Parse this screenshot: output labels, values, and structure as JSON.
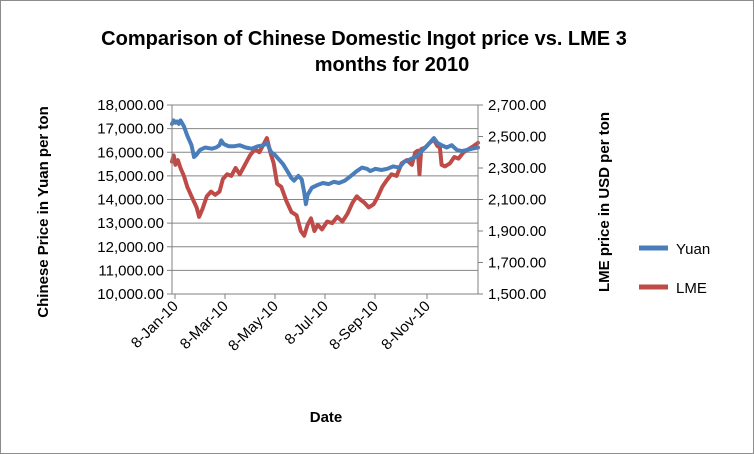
{
  "chart_data": {
    "type": "line",
    "title_line1": "Comparison of Chinese Domestic Ingot price vs. LME 3",
    "title_line2": "months for 2010",
    "xlabel": "Date",
    "ylabel_left": "Chinese Price in Yuan per ton",
    "ylabel_right": "LME price in USD per ton",
    "x_tick_labels": [
      "8-Jan-10",
      "8-Mar-10",
      "8-May-10",
      "8-Jul-10",
      "8-Sep-10",
      "8-Nov-10"
    ],
    "left_axis": {
      "ylim": [
        10000,
        18000
      ],
      "tick_labels": [
        "10,000.00",
        "11,000.00",
        "12,000.00",
        "13,000.00",
        "14,000.00",
        "15,000.00",
        "16,000.00",
        "17,000.00",
        "18,000.00"
      ]
    },
    "right_axis": {
      "ylim": [
        1500,
        2700
      ],
      "tick_labels": [
        "1,500.00",
        "1,700.00",
        "1,900.00",
        "2,100.00",
        "2,300.00",
        "2,500.00",
        "2,700.00"
      ]
    },
    "x_range": [
      "2010-01-04",
      "2010-12-31"
    ],
    "grid": true,
    "legend_position": "right",
    "series": [
      {
        "name": "Yuan",
        "axis": "left",
        "color": "#4a7ebb",
        "points": [
          [
            "2010-01-04",
            17200
          ],
          [
            "2010-01-06",
            17350
          ],
          [
            "2010-01-08",
            17250
          ],
          [
            "2010-01-10",
            17300
          ],
          [
            "2010-01-12",
            17200
          ],
          [
            "2010-01-14",
            17350
          ],
          [
            "2010-01-18",
            17100
          ],
          [
            "2010-01-22",
            16700
          ],
          [
            "2010-01-27",
            16300
          ],
          [
            "2010-01-30",
            15800
          ],
          [
            "2010-02-02",
            15900
          ],
          [
            "2010-02-06",
            16100
          ],
          [
            "2010-02-12",
            16200
          ],
          [
            "2010-02-20",
            16150
          ],
          [
            "2010-02-25",
            16200
          ],
          [
            "2010-03-01",
            16300
          ],
          [
            "2010-03-03",
            16500
          ],
          [
            "2010-03-06",
            16350
          ],
          [
            "2010-03-12",
            16250
          ],
          [
            "2010-03-18",
            16250
          ],
          [
            "2010-03-25",
            16300
          ],
          [
            "2010-04-01",
            16200
          ],
          [
            "2010-04-08",
            16150
          ],
          [
            "2010-04-15",
            16250
          ],
          [
            "2010-04-22",
            16300
          ],
          [
            "2010-04-26",
            16400
          ],
          [
            "2010-05-01",
            16000
          ],
          [
            "2010-05-05",
            15900
          ],
          [
            "2010-05-10",
            15700
          ],
          [
            "2010-05-15",
            15500
          ],
          [
            "2010-05-20",
            15200
          ],
          [
            "2010-05-25",
            14900
          ],
          [
            "2010-05-28",
            14800
          ],
          [
            "2010-06-02",
            15000
          ],
          [
            "2010-06-06",
            14850
          ],
          [
            "2010-06-09",
            14300
          ],
          [
            "2010-06-11",
            13800
          ],
          [
            "2010-06-13",
            14200
          ],
          [
            "2010-06-18",
            14500
          ],
          [
            "2010-06-24",
            14600
          ],
          [
            "2010-07-01",
            14700
          ],
          [
            "2010-07-08",
            14650
          ],
          [
            "2010-07-14",
            14750
          ],
          [
            "2010-07-20",
            14700
          ],
          [
            "2010-07-27",
            14800
          ],
          [
            "2010-08-03",
            15000
          ],
          [
            "2010-08-10",
            15200
          ],
          [
            "2010-08-16",
            15350
          ],
          [
            "2010-08-22",
            15300
          ],
          [
            "2010-08-26",
            15200
          ],
          [
            "2010-09-01",
            15300
          ],
          [
            "2010-09-08",
            15250
          ],
          [
            "2010-09-15",
            15300
          ],
          [
            "2010-09-22",
            15400
          ],
          [
            "2010-09-29",
            15350
          ],
          [
            "2010-10-05",
            15600
          ],
          [
            "2010-10-12",
            15700
          ],
          [
            "2010-10-18",
            15800
          ],
          [
            "2010-10-24",
            16000
          ],
          [
            "2010-10-30",
            16200
          ],
          [
            "2010-11-04",
            16400
          ],
          [
            "2010-11-09",
            16600
          ],
          [
            "2010-11-13",
            16400
          ],
          [
            "2010-11-18",
            16300
          ],
          [
            "2010-11-24",
            16200
          ],
          [
            "2010-11-30",
            16300
          ],
          [
            "2010-12-06",
            16100
          ],
          [
            "2010-12-12",
            16050
          ],
          [
            "2010-12-18",
            16100
          ],
          [
            "2010-12-24",
            16150
          ],
          [
            "2010-12-31",
            16200
          ]
        ]
      },
      {
        "name": "LME",
        "axis": "right",
        "color": "#be4b48",
        "points": [
          [
            "2010-01-04",
            2340
          ],
          [
            "2010-01-06",
            2380
          ],
          [
            "2010-01-08",
            2320
          ],
          [
            "2010-01-11",
            2350
          ],
          [
            "2010-01-14",
            2300
          ],
          [
            "2010-01-18",
            2250
          ],
          [
            "2010-01-22",
            2180
          ],
          [
            "2010-01-27",
            2120
          ],
          [
            "2010-02-02",
            2050
          ],
          [
            "2010-02-05",
            1990
          ],
          [
            "2010-02-09",
            2040
          ],
          [
            "2010-02-14",
            2120
          ],
          [
            "2010-02-19",
            2150
          ],
          [
            "2010-02-24",
            2130
          ],
          [
            "2010-03-01",
            2150
          ],
          [
            "2010-03-05",
            2230
          ],
          [
            "2010-03-10",
            2260
          ],
          [
            "2010-03-15",
            2250
          ],
          [
            "2010-03-20",
            2300
          ],
          [
            "2010-03-25",
            2260
          ],
          [
            "2010-03-31",
            2320
          ],
          [
            "2010-04-06",
            2380
          ],
          [
            "2010-04-12",
            2420
          ],
          [
            "2010-04-17",
            2400
          ],
          [
            "2010-04-22",
            2450
          ],
          [
            "2010-04-26",
            2490
          ],
          [
            "2010-04-30",
            2400
          ],
          [
            "2010-05-04",
            2330
          ],
          [
            "2010-05-08",
            2200
          ],
          [
            "2010-05-13",
            2180
          ],
          [
            "2010-05-19",
            2090
          ],
          [
            "2010-05-25",
            2020
          ],
          [
            "2010-05-31",
            2000
          ],
          [
            "2010-06-05",
            1900
          ],
          [
            "2010-06-09",
            1870
          ],
          [
            "2010-06-13",
            1940
          ],
          [
            "2010-06-17",
            1980
          ],
          [
            "2010-06-21",
            1900
          ],
          [
            "2010-06-25",
            1940
          ],
          [
            "2010-06-30",
            1910
          ],
          [
            "2010-07-06",
            1960
          ],
          [
            "2010-07-12",
            1950
          ],
          [
            "2010-07-18",
            1990
          ],
          [
            "2010-07-24",
            1960
          ],
          [
            "2010-07-30",
            2010
          ],
          [
            "2010-08-05",
            2080
          ],
          [
            "2010-08-10",
            2120
          ],
          [
            "2010-08-14",
            2100
          ],
          [
            "2010-08-19",
            2080
          ],
          [
            "2010-08-24",
            2050
          ],
          [
            "2010-08-30",
            2070
          ],
          [
            "2010-09-04",
            2120
          ],
          [
            "2010-09-09",
            2180
          ],
          [
            "2010-09-14",
            2220
          ],
          [
            "2010-09-20",
            2260
          ],
          [
            "2010-09-26",
            2250
          ],
          [
            "2010-10-02",
            2330
          ],
          [
            "2010-10-08",
            2350
          ],
          [
            "2010-10-14",
            2320
          ],
          [
            "2010-10-18",
            2400
          ],
          [
            "2010-10-21",
            2410
          ],
          [
            "2010-10-23",
            2260
          ],
          [
            "2010-10-25",
            2420
          ],
          [
            "2010-10-30",
            2430
          ],
          [
            "2010-11-04",
            2460
          ],
          [
            "2010-11-09",
            2480
          ],
          [
            "2010-11-13",
            2440
          ],
          [
            "2010-11-16",
            2430
          ],
          [
            "2010-11-18",
            2320
          ],
          [
            "2010-11-22",
            2310
          ],
          [
            "2010-11-28",
            2330
          ],
          [
            "2010-12-03",
            2370
          ],
          [
            "2010-12-08",
            2360
          ],
          [
            "2010-12-14",
            2400
          ],
          [
            "2010-12-20",
            2420
          ],
          [
            "2010-12-26",
            2440
          ],
          [
            "2010-12-31",
            2460
          ]
        ]
      }
    ]
  }
}
